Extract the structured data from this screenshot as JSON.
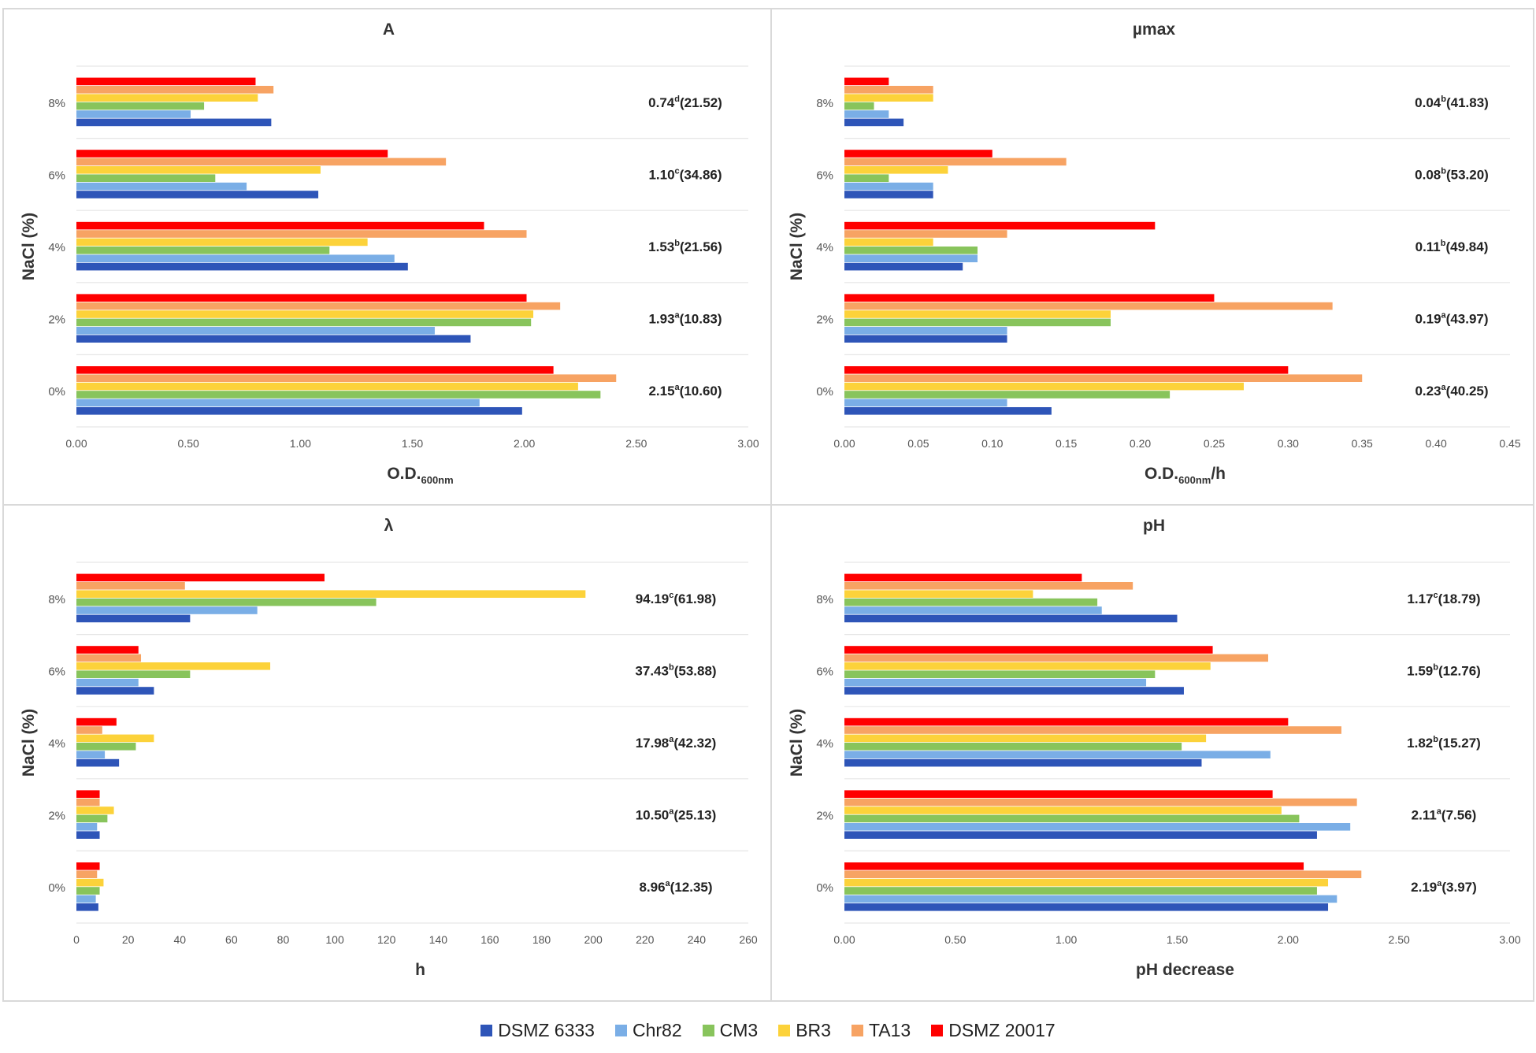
{
  "legend": [
    {
      "name": "DSMZ 6333",
      "color": "#2e55b8"
    },
    {
      "name": "Chr82",
      "color": "#7aaee6"
    },
    {
      "name": "CM3",
      "color": "#88c45c"
    },
    {
      "name": "BR3",
      "color": "#fcd23a"
    },
    {
      "name": "TA13",
      "color": "#f7a363"
    },
    {
      "name": "DSMZ 20017",
      "color": "#ff0000"
    }
  ],
  "chart_data": [
    {
      "type": "bar",
      "orientation": "horizontal",
      "title": "A",
      "ylabel": "NaCl (%)",
      "xlabel_main": "O.D.",
      "xlabel_sub": "600nm",
      "xlabel_suffix": "",
      "categories": [
        "0%",
        "2%",
        "4%",
        "6%",
        "8%"
      ],
      "xlim": [
        0,
        3
      ],
      "xticks": [
        "0.00",
        "0.50",
        "1.00",
        "1.50",
        "2.00",
        "2.50",
        "3.00"
      ],
      "series": [
        {
          "name": "DSMZ 6333",
          "values": [
            1.99,
            1.76,
            1.48,
            1.08,
            0.87
          ]
        },
        {
          "name": "Chr82",
          "values": [
            1.8,
            1.6,
            1.42,
            0.76,
            0.51
          ]
        },
        {
          "name": "CM3",
          "values": [
            2.34,
            2.03,
            1.13,
            0.62,
            0.57
          ]
        },
        {
          "name": "BR3",
          "values": [
            2.24,
            2.04,
            1.3,
            1.09,
            0.81
          ]
        },
        {
          "name": "TA13",
          "values": [
            2.41,
            2.16,
            2.01,
            1.65,
            0.88
          ]
        },
        {
          "name": "DSMZ 20017",
          "values": [
            2.13,
            2.01,
            1.82,
            1.39,
            0.8
          ]
        }
      ],
      "annotations": [
        {
          "value": "2.15",
          "sup": "a",
          "paren": "(10.60)"
        },
        {
          "value": "1.93",
          "sup": "a",
          "paren": "(10.83)"
        },
        {
          "value": "1.53",
          "sup": "b",
          "paren": "(21.56)"
        },
        {
          "value": "1.10",
          "sup": "c",
          "paren": "(34.86)"
        },
        {
          "value": "0.74",
          "sup": "d",
          "paren": "(21.52)"
        }
      ]
    },
    {
      "type": "bar",
      "orientation": "horizontal",
      "title": "µmax",
      "ylabel": "NaCl (%)",
      "xlabel_main": "O.D.",
      "xlabel_sub": "600nm",
      "xlabel_suffix": "/h",
      "categories": [
        "0%",
        "2%",
        "4%",
        "6%",
        "8%"
      ],
      "xlim": [
        0,
        0.45
      ],
      "xticks": [
        "0.00",
        "0.05",
        "0.10",
        "0.15",
        "0.20",
        "0.25",
        "0.30",
        "0.35",
        "0.40",
        "0.45"
      ],
      "series": [
        {
          "name": "DSMZ 6333",
          "values": [
            0.14,
            0.11,
            0.08,
            0.06,
            0.04
          ]
        },
        {
          "name": "Chr82",
          "values": [
            0.11,
            0.11,
            0.09,
            0.06,
            0.03
          ]
        },
        {
          "name": "CM3",
          "values": [
            0.22,
            0.18,
            0.09,
            0.03,
            0.02
          ]
        },
        {
          "name": "BR3",
          "values": [
            0.27,
            0.18,
            0.06,
            0.07,
            0.06
          ]
        },
        {
          "name": "TA13",
          "values": [
            0.35,
            0.33,
            0.11,
            0.15,
            0.06
          ]
        },
        {
          "name": "DSMZ 20017",
          "values": [
            0.3,
            0.25,
            0.21,
            0.1,
            0.03
          ]
        }
      ],
      "annotations": [
        {
          "value": "0.23",
          "sup": "a",
          "paren": "(40.25)"
        },
        {
          "value": "0.19",
          "sup": "a",
          "paren": "(43.97)"
        },
        {
          "value": "0.11",
          "sup": "b",
          "paren": "(49.84)"
        },
        {
          "value": "0.08",
          "sup": "b",
          "paren": "(53.20)"
        },
        {
          "value": "0.04",
          "sup": "b",
          "paren": "(41.83)"
        }
      ]
    },
    {
      "type": "bar",
      "orientation": "horizontal",
      "title": "λ",
      "ylabel": "NaCl (%)",
      "xlabel_main": "h",
      "xlabel_sub": "",
      "xlabel_suffix": "",
      "categories": [
        "0%",
        "2%",
        "4%",
        "6%",
        "8%"
      ],
      "xlim": [
        0,
        260
      ],
      "xticks": [
        "0",
        "20",
        "40",
        "60",
        "80",
        "100",
        "120",
        "140",
        "160",
        "180",
        "200",
        "220",
        "240",
        "260"
      ],
      "series": [
        {
          "name": "DSMZ 6333",
          "values": [
            8.5,
            9,
            16.5,
            30,
            44
          ]
        },
        {
          "name": "Chr82",
          "values": [
            7.5,
            8,
            11,
            24,
            70
          ]
        },
        {
          "name": "CM3",
          "values": [
            9,
            12,
            23,
            44,
            116
          ]
        },
        {
          "name": "BR3",
          "values": [
            10.5,
            14.5,
            30,
            75,
            197
          ]
        },
        {
          "name": "TA13",
          "values": [
            8,
            9,
            10,
            25,
            42
          ]
        },
        {
          "name": "DSMZ 20017",
          "values": [
            9,
            9,
            15.5,
            24,
            96
          ]
        }
      ],
      "annotations": [
        {
          "value": "8.96",
          "sup": "a",
          "paren": "(12.35)"
        },
        {
          "value": "10.50",
          "sup": "a",
          "paren": "(25.13)"
        },
        {
          "value": "17.98",
          "sup": "a",
          "paren": "(42.32)"
        },
        {
          "value": "37.43",
          "sup": "b",
          "paren": "(53.88)"
        },
        {
          "value": "94.19",
          "sup": "c",
          "paren": "(61.98)"
        }
      ]
    },
    {
      "type": "bar",
      "orientation": "horizontal",
      "title": "pH",
      "ylabel": "NaCl (%)",
      "xlabel_main": "pH decrease",
      "xlabel_sub": "",
      "xlabel_suffix": "",
      "categories": [
        "0%",
        "2%",
        "4%",
        "6%",
        "8%"
      ],
      "xlim": [
        0,
        3
      ],
      "xticks": [
        "0.00",
        "0.50",
        "1.00",
        "1.50",
        "2.00",
        "2.50",
        "3.00"
      ],
      "series": [
        {
          "name": "DSMZ 6333",
          "values": [
            2.18,
            2.13,
            1.61,
            1.53,
            1.5
          ]
        },
        {
          "name": "Chr82",
          "values": [
            2.22,
            2.28,
            1.92,
            1.36,
            1.16
          ]
        },
        {
          "name": "CM3",
          "values": [
            2.13,
            2.05,
            1.52,
            1.4,
            1.14
          ]
        },
        {
          "name": "BR3",
          "values": [
            2.18,
            1.97,
            1.63,
            1.65,
            0.85
          ]
        },
        {
          "name": "TA13",
          "values": [
            2.33,
            2.31,
            2.24,
            1.91,
            1.3
          ]
        },
        {
          "name": "DSMZ 20017",
          "values": [
            2.07,
            1.93,
            2.0,
            1.66,
            1.07
          ]
        }
      ],
      "annotations": [
        {
          "value": "2.19",
          "sup": "a",
          "paren": "(3.97)"
        },
        {
          "value": "2.11",
          "sup": "a",
          "paren": "(7.56)"
        },
        {
          "value": "1.82",
          "sup": "b",
          "paren": "(15.27)"
        },
        {
          "value": "1.59",
          "sup": "b",
          "paren": "(12.76)"
        },
        {
          "value": "1.17",
          "sup": "c",
          "paren": "(18.79)"
        }
      ]
    }
  ]
}
